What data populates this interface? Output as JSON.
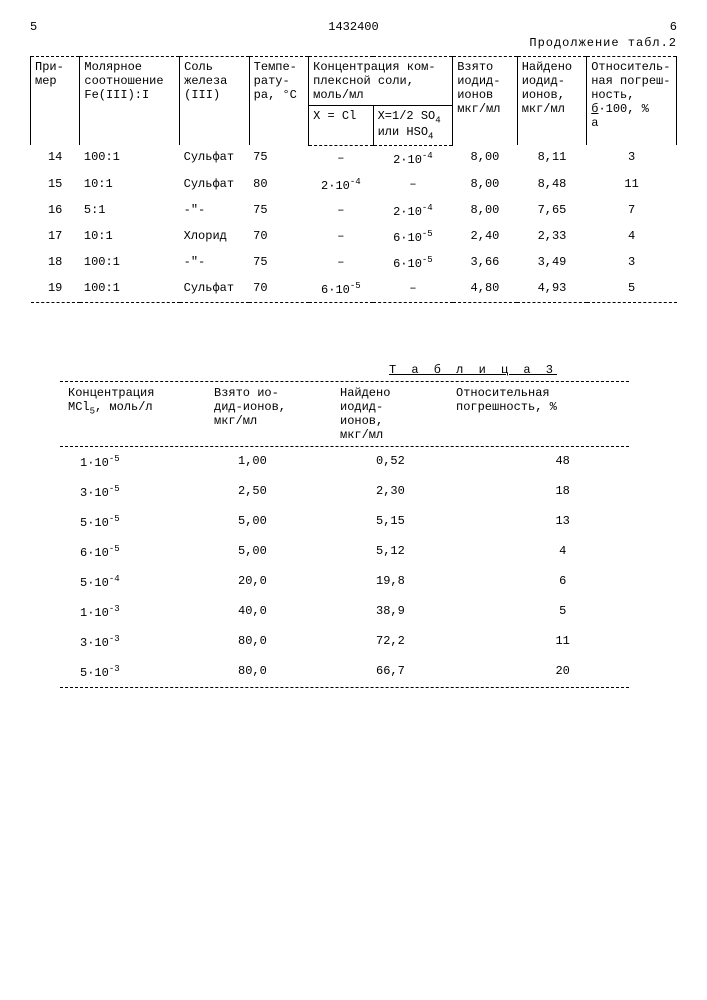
{
  "header": {
    "left_page": "5",
    "doc_number": "1432400",
    "right_page": "6",
    "continuation": "Продолжение табл.2"
  },
  "table2": {
    "headers": {
      "c1": "При-\nмер",
      "c2": "Молярное\nсоотношение\nFe(III):I",
      "c3": "Соль\nжелеза\n(III)",
      "c4": "Темпе-\nрату-\nра, °С",
      "c5": "Концентрация ком-\nплексной соли,\nмоль/мл",
      "c5a": "X = Cl",
      "c5b": "X=1/2 SO₄\nили HSO₄",
      "c6": "Взято\nиодид-\nионов\nмкг/мл",
      "c7": "Найдено\nиодид-\nионов,\nмкг/мл",
      "c8_top": "Относитель-\nная погреш-\nность,",
      "c8_frac_num": "б",
      "c8_frac_den": "a",
      "c8_tail": "·100, %"
    },
    "rows": [
      {
        "n": "14",
        "ratio": "100:1",
        "salt": "Сульфат",
        "t": "75",
        "xcl": "–",
        "xso": "2·10⁻⁴",
        "taken": "8,00",
        "found": "8,11",
        "err": "3"
      },
      {
        "n": "15",
        "ratio": "10:1",
        "salt": "Сульфат",
        "t": "80",
        "xcl": "2·10⁻⁴",
        "xso": "–",
        "taken": "8,00",
        "found": "8,48",
        "err": "11"
      },
      {
        "n": "16",
        "ratio": "5:1",
        "salt": "-\"-",
        "t": "75",
        "xcl": "–",
        "xso": "2·10⁻⁴",
        "taken": "8,00",
        "found": "7,65",
        "err": "7"
      },
      {
        "n": "17",
        "ratio": "10:1",
        "salt": "Хлорид",
        "t": "70",
        "xcl": "–",
        "xso": "6·10⁻⁵",
        "taken": "2,40",
        "found": "2,33",
        "err": "4"
      },
      {
        "n": "18",
        "ratio": "100:1",
        "salt": "-\"-",
        "t": "75",
        "xcl": "–",
        "xso": "6·10⁻⁵",
        "taken": "3,66",
        "found": "3,49",
        "err": "3"
      },
      {
        "n": "19",
        "ratio": "100:1",
        "salt": "Сульфат",
        "t": "70",
        "xcl": "6·10⁻⁵",
        "xso": "–",
        "taken": "4,80",
        "found": "4,93",
        "err": "5"
      }
    ]
  },
  "table3": {
    "title": "Т а б л и ц а  3",
    "headers": {
      "c1": "Концентрация\nMCl₅, моль/л",
      "c2": "Взято ио-\nдид-ионов,\nмкг/мл",
      "c3": "Найдено\nиодид-\nионов,\nмкг/мл",
      "c4": "Относительная\nпогрешность, %"
    },
    "rows": [
      {
        "conc": "1·10⁻⁵",
        "taken": "1,00",
        "found": "0,52",
        "err": "48"
      },
      {
        "conc": "3·10⁻⁵",
        "taken": "2,50",
        "found": "2,30",
        "err": "18"
      },
      {
        "conc": "5·10⁻⁵",
        "taken": "5,00",
        "found": "5,15",
        "err": "13"
      },
      {
        "conc": "6·10⁻⁵",
        "taken": "5,00",
        "found": "5,12",
        "err": "4"
      },
      {
        "conc": "5·10⁻⁴",
        "taken": "20,0",
        "found": "19,8",
        "err": "6"
      },
      {
        "conc": "1·10⁻³",
        "taken": "40,0",
        "found": "38,9",
        "err": "5"
      },
      {
        "conc": "3·10⁻³",
        "taken": "80,0",
        "found": "72,2",
        "err": "11"
      },
      {
        "conc": "5·10⁻³",
        "taken": "80,0",
        "found": "66,7",
        "err": "20"
      }
    ]
  }
}
